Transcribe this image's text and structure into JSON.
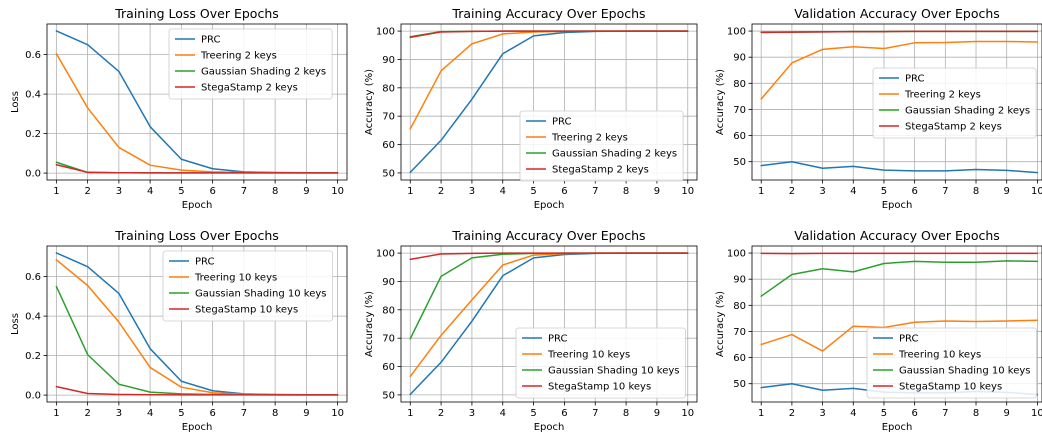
{
  "colors": {
    "prc": "#1f77b4",
    "treering": "#ff7f0e",
    "gaussian": "#2ca02c",
    "stegastamp": "#d62728"
  },
  "chart_data": [
    {
      "type": "line",
      "title": "Training Loss Over Epochs",
      "xlabel": "Epoch",
      "ylabel": "Loss",
      "x": [
        1,
        2,
        3,
        4,
        5,
        6,
        7,
        8,
        9,
        10
      ],
      "xlim": [
        0.7,
        10.3
      ],
      "ylim": [
        -0.035,
        0.755
      ],
      "yticks": [
        0.0,
        0.2,
        0.4,
        0.6
      ],
      "ytick_labels": [
        "0.0",
        "0.2",
        "0.4",
        "0.6"
      ],
      "grid": true,
      "legend": "top-right",
      "series": [
        {
          "name": "PRC",
          "color": "#1f77b4",
          "values": [
            0.72,
            0.65,
            0.515,
            0.235,
            0.07,
            0.022,
            0.006,
            0.003,
            0.002,
            0.002
          ]
        },
        {
          "name": "Treering 2 keys",
          "color": "#ff7f0e",
          "values": [
            0.605,
            0.33,
            0.13,
            0.04,
            0.015,
            0.006,
            0.003,
            0.002,
            0.001,
            0.001
          ]
        },
        {
          "name": "Gaussian Shading 2 keys",
          "color": "#2ca02c",
          "values": [
            0.055,
            0.003,
            0.002,
            0.001,
            0.001,
            0.001,
            0.001,
            0.001,
            0.001,
            0.001
          ]
        },
        {
          "name": "StegaStamp 2 keys",
          "color": "#d62728",
          "values": [
            0.042,
            0.004,
            0.002,
            0.001,
            0.001,
            0.001,
            0.001,
            0.001,
            0.001,
            0.001
          ]
        }
      ]
    },
    {
      "type": "line",
      "title": "Training Accuracy Over Epochs",
      "xlabel": "Epoch",
      "ylabel": "Accuracy (%)",
      "x": [
        1,
        2,
        3,
        4,
        5,
        6,
        7,
        8,
        9,
        10
      ],
      "xlim": [
        0.7,
        10.3
      ],
      "ylim": [
        47.5,
        102.5
      ],
      "yticks": [
        50,
        60,
        70,
        80,
        90,
        100
      ],
      "ytick_labels": [
        "50",
        "60",
        "70",
        "80",
        "90",
        "100"
      ],
      "grid": true,
      "legend": "bottom-right",
      "series": [
        {
          "name": "PRC",
          "color": "#1f77b4",
          "values": [
            50.2,
            61.5,
            76.0,
            92.0,
            98.3,
            99.5,
            99.9,
            100,
            100,
            100
          ]
        },
        {
          "name": "Treering 2 keys",
          "color": "#ff7f0e",
          "values": [
            65.5,
            86.0,
            95.5,
            99.0,
            99.7,
            99.9,
            100,
            100,
            100,
            100
          ]
        },
        {
          "name": "Gaussian Shading 2 keys",
          "color": "#2ca02c",
          "values": [
            98.0,
            99.8,
            99.9,
            100,
            100,
            100,
            100,
            100,
            100,
            100
          ]
        },
        {
          "name": "StegaStamp 2 keys",
          "color": "#d62728",
          "values": [
            97.8,
            99.7,
            99.9,
            100,
            100,
            100,
            100,
            100,
            100,
            100
          ]
        }
      ]
    },
    {
      "type": "line",
      "title": "Validation Accuracy Over Epochs",
      "xlabel": "Epoch",
      "ylabel": "Accuracy (%)",
      "x": [
        1,
        2,
        3,
        4,
        5,
        6,
        7,
        8,
        9,
        10
      ],
      "xlim": [
        0.7,
        10.15
      ],
      "ylim": [
        43.0,
        102.7
      ],
      "yticks": [
        50,
        60,
        70,
        80,
        90,
        100
      ],
      "ytick_labels": [
        "50",
        "60",
        "70",
        "80",
        "90",
        "100"
      ],
      "grid": true,
      "legend": "center-right",
      "series": [
        {
          "name": "PRC",
          "color": "#1f77b4",
          "values": [
            48.5,
            50.0,
            47.5,
            48.2,
            46.8,
            46.5,
            46.5,
            47.0,
            46.7,
            45.8
          ]
        },
        {
          "name": "Treering 2 keys",
          "color": "#ff7f0e",
          "values": [
            74.0,
            87.8,
            93.0,
            94.0,
            93.3,
            95.5,
            95.6,
            96.0,
            96.0,
            95.8
          ]
        },
        {
          "name": "Gaussian Shading 2 keys",
          "color": "#2ca02c",
          "values": [
            99.5,
            99.6,
            99.7,
            99.8,
            99.8,
            99.9,
            99.9,
            99.9,
            99.9,
            99.9
          ]
        },
        {
          "name": "StegaStamp 2 keys",
          "color": "#d62728",
          "values": [
            99.5,
            99.6,
            99.7,
            99.8,
            99.8,
            99.9,
            99.9,
            99.9,
            99.9,
            99.9
          ]
        }
      ]
    },
    {
      "type": "line",
      "title": "Training Loss Over Epochs",
      "xlabel": "Epoch",
      "ylabel": "Loss",
      "x": [
        1,
        2,
        3,
        4,
        5,
        6,
        7,
        8,
        9,
        10
      ],
      "xlim": [
        0.7,
        10.3
      ],
      "ylim": [
        -0.035,
        0.755
      ],
      "yticks": [
        0.0,
        0.2,
        0.4,
        0.6
      ],
      "ytick_labels": [
        "0.0",
        "0.2",
        "0.4",
        "0.6"
      ],
      "grid": true,
      "legend": "top-right",
      "series": [
        {
          "name": "PRC",
          "color": "#1f77b4",
          "values": [
            0.72,
            0.65,
            0.515,
            0.235,
            0.07,
            0.022,
            0.006,
            0.003,
            0.002,
            0.002
          ]
        },
        {
          "name": "Treering 10 keys",
          "color": "#ff7f0e",
          "values": [
            0.685,
            0.555,
            0.37,
            0.14,
            0.04,
            0.012,
            0.004,
            0.002,
            0.001,
            0.001
          ]
        },
        {
          "name": "Gaussian Shading 10 keys",
          "color": "#2ca02c",
          "values": [
            0.55,
            0.205,
            0.055,
            0.015,
            0.006,
            0.003,
            0.002,
            0.001,
            0.001,
            0.001
          ]
        },
        {
          "name": "StegaStamp 10 keys",
          "color": "#d62728",
          "values": [
            0.043,
            0.008,
            0.003,
            0.002,
            0.001,
            0.001,
            0.001,
            0.001,
            0.001,
            0.001
          ]
        }
      ]
    },
    {
      "type": "line",
      "title": "Training Accuracy Over Epochs",
      "xlabel": "Epoch",
      "ylabel": "Accuracy (%)",
      "x": [
        1,
        2,
        3,
        4,
        5,
        6,
        7,
        8,
        9,
        10
      ],
      "xlim": [
        0.7,
        10.3
      ],
      "ylim": [
        47.5,
        102.5
      ],
      "yticks": [
        50,
        60,
        70,
        80,
        90,
        100
      ],
      "ytick_labels": [
        "50",
        "60",
        "70",
        "80",
        "90",
        "100"
      ],
      "grid": true,
      "legend": "bottom-right",
      "series": [
        {
          "name": "PRC",
          "color": "#1f77b4",
          "values": [
            50.2,
            61.5,
            76.0,
            92.0,
            98.3,
            99.5,
            99.9,
            100,
            100,
            100
          ]
        },
        {
          "name": "Treering 10 keys",
          "color": "#ff7f0e",
          "values": [
            56.5,
            71.0,
            83.5,
            95.8,
            99.3,
            99.8,
            100,
            100,
            100,
            100
          ]
        },
        {
          "name": "Gaussian Shading 10 keys",
          "color": "#2ca02c",
          "values": [
            69.8,
            91.8,
            98.3,
            99.6,
            99.9,
            100,
            100,
            100,
            100,
            100
          ]
        },
        {
          "name": "StegaStamp 10 keys",
          "color": "#d62728",
          "values": [
            97.8,
            99.7,
            99.9,
            100,
            100,
            100,
            100,
            100,
            100,
            100
          ]
        }
      ]
    },
    {
      "type": "line",
      "title": "Validation Accuracy Over Epochs",
      "xlabel": "Epoch",
      "ylabel": "Accuracy (%)",
      "x": [
        1,
        2,
        3,
        4,
        5,
        6,
        7,
        8,
        9,
        10
      ],
      "xlim": [
        0.7,
        10.15
      ],
      "ylim": [
        43.0,
        102.7
      ],
      "yticks": [
        50,
        60,
        70,
        80,
        90,
        100
      ],
      "ytick_labels": [
        "50",
        "60",
        "70",
        "80",
        "90",
        "100"
      ],
      "grid": true,
      "legend": "bottom-right",
      "series": [
        {
          "name": "PRC",
          "color": "#1f77b4",
          "values": [
            48.5,
            50.0,
            47.5,
            48.2,
            46.8,
            46.5,
            46.5,
            47.0,
            46.7,
            45.8
          ]
        },
        {
          "name": "Treering 10 keys",
          "color": "#ff7f0e",
          "values": [
            65.0,
            68.8,
            62.5,
            72.0,
            71.5,
            73.5,
            74.0,
            73.8,
            74.0,
            74.3
          ]
        },
        {
          "name": "Gaussian Shading 10 keys",
          "color": "#2ca02c",
          "values": [
            83.5,
            91.8,
            94.0,
            92.8,
            96.0,
            96.8,
            96.5,
            96.5,
            97.0,
            96.8
          ]
        },
        {
          "name": "StegaStamp 10 keys",
          "color": "#d62728",
          "values": [
            99.9,
            99.8,
            99.9,
            99.9,
            99.9,
            99.9,
            99.9,
            99.9,
            99.9,
            99.9
          ]
        }
      ]
    }
  ]
}
